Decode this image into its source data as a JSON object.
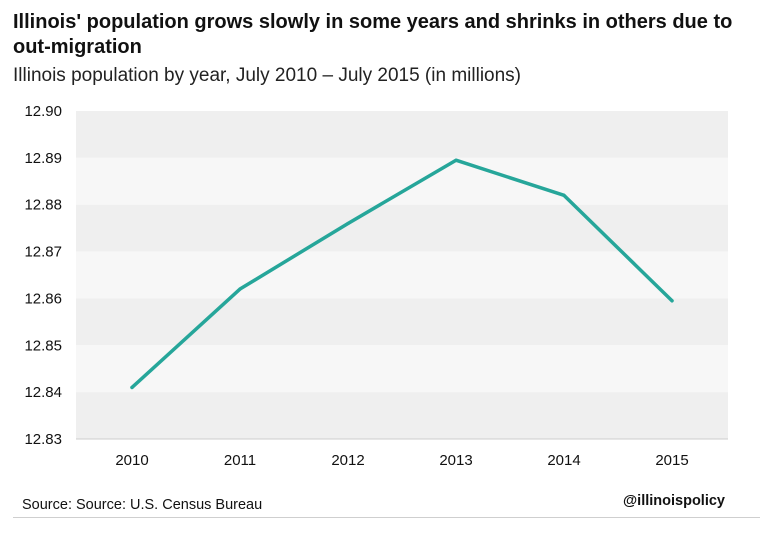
{
  "chart_data": {
    "type": "line",
    "title": "Illinois' population grows slowly in some years and shrinks in others due to out-migration",
    "subtitle": "Illinois population by year, July 2010 – July 2015 (in millions)",
    "categories": [
      "2010",
      "2011",
      "2012",
      "2013",
      "2014",
      "2015"
    ],
    "series": [
      {
        "values": [
          12.841,
          12.862,
          12.876,
          12.8895,
          12.882,
          12.8595
        ]
      }
    ],
    "ylim": [
      12.83,
      12.9
    ],
    "yticks": [
      "12.90",
      "12.89",
      "12.88",
      "12.87",
      "12.86",
      "12.85",
      "12.84",
      "12.83"
    ],
    "xlabel": "",
    "ylabel": "",
    "grid": "alternating horizontal bands",
    "legend": "none",
    "colors": {
      "line": "#26a69a",
      "band_dark": "#efefef",
      "band_light": "#f7f7f7",
      "axis": "#cccccc"
    }
  },
  "footer": {
    "source": "Source: Source: U.S. Census Bureau",
    "handle": "@illinoispolicy"
  }
}
